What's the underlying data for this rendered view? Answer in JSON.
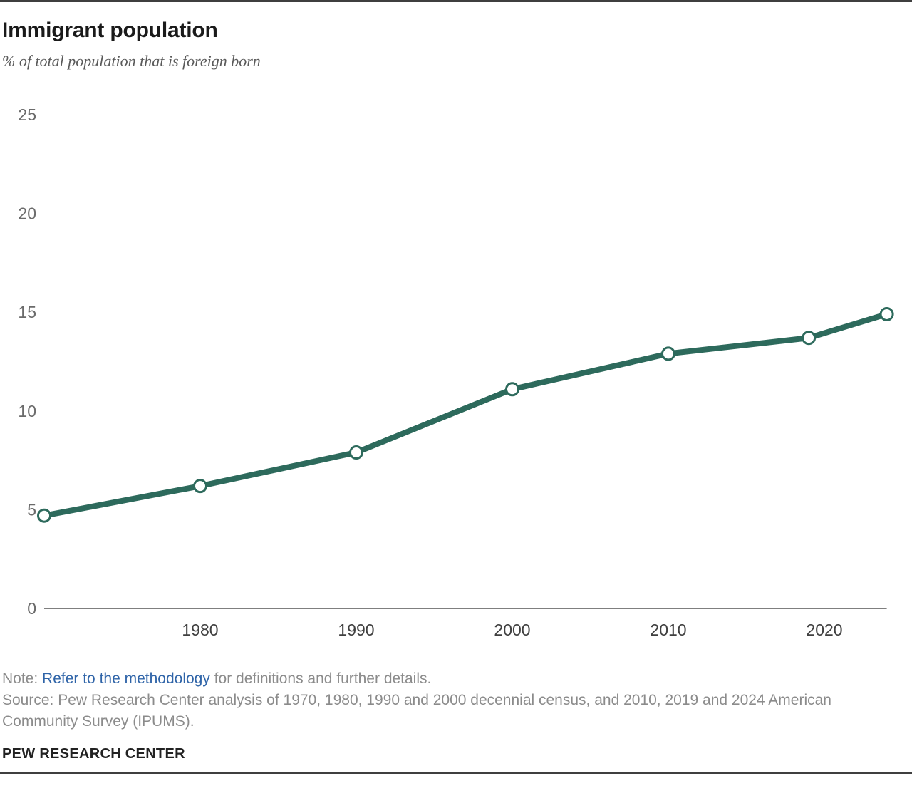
{
  "page": {
    "title": "Immigrant population",
    "subtitle": "% of total population that is foreign born"
  },
  "chart_data": {
    "type": "line",
    "title": "Immigrant population",
    "subtitle": "% of total population that is foreign born",
    "x": [
      1970,
      1980,
      1990,
      2000,
      2010,
      2019,
      2024
    ],
    "values": [
      4.7,
      6.2,
      7.9,
      11.1,
      12.9,
      13.7,
      14.9
    ],
    "series_name": "% of total population that is foreign born",
    "xlim": [
      1970,
      2024
    ],
    "ylim": [
      0,
      25
    ],
    "yticks": [
      0,
      5,
      10,
      15,
      20,
      25
    ],
    "xticks": [
      1980,
      1990,
      2000,
      2010,
      2020
    ],
    "grid": false,
    "legend": "none",
    "line_color": "#2D6A5C",
    "marker": {
      "shape": "circle",
      "fill": "#FFFFFF",
      "stroke": "#2D6A5C"
    },
    "axis_color": "#7f7f7f",
    "y_tick_label_color": "#6b6b6b",
    "x_tick_label_color": "#404040"
  },
  "notes": {
    "note_label": "Note: ",
    "methodology_link": "Refer to the methodology",
    "note_rest": " for definitions and further details.",
    "link_color": "#2F64A8",
    "source": "Source: Pew Research Center analysis of 1970, 1980, 1990 and 2000 decennial census, and 2010, 2019 and 2024 American Community Survey (IPUMS)."
  },
  "footer": {
    "brand": "PEW RESEARCH CENTER"
  }
}
